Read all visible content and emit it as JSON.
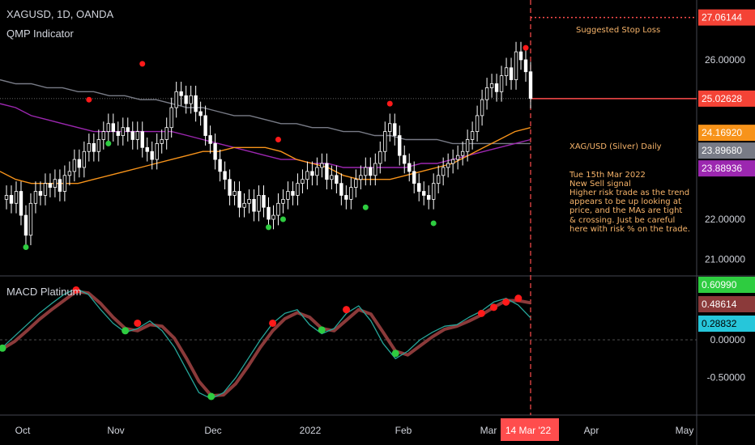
{
  "header": {
    "symbol": "XAGUSD, 1D, OANDA",
    "indicator": "QMP Indicator",
    "macd_label": "MACD Platinum"
  },
  "annotations": {
    "stop_loss": "Suggested Stop Loss",
    "note_title": "XAG/USD (Silver) Daily",
    "note_body": "Tue 15th Mar 2022\nNew Sell signal\nHigher risk trade as the trend appears to be up looking at price, and the MAs are tight & crossing. Just be careful here with risk % on the trade."
  },
  "colors": {
    "background": "#000000",
    "up_candle": "#ffffff",
    "down_candle": "#ffffff",
    "ma_fast": "#f7931a",
    "ma_mid": "#9c27b0",
    "ma_slow": "#787b86",
    "buy_signal": "#2ecc40",
    "sell_signal": "#ff1a1a",
    "macd_line": "#26a69a",
    "signal_line": "#8b3a3a",
    "stop_line": "#ff4d4d"
  },
  "chart_data": [
    {
      "type": "candlestick",
      "price_axis": {
        "ticks": [
          "26.00000",
          "22.00000",
          "21.00000"
        ],
        "tick_values": [
          26,
          22,
          21
        ],
        "range": [
          20.6,
          27.5
        ],
        "labels": [
          {
            "text": "27.06144",
            "value": 27.06144,
            "color": "#f44336"
          },
          {
            "text": "25.02628",
            "value": 25.02628,
            "color": "#f44336"
          },
          {
            "text": "24.16920",
            "value": 24.1692,
            "color": "#f7931a"
          },
          {
            "text": "23.89680",
            "value": 23.8968,
            "color": "#787b86"
          },
          {
            "text": "23.88936",
            "value": 23.88936,
            "color": "#9c27b0"
          }
        ]
      },
      "time_axis": {
        "labels": [
          "Oct",
          "Nov",
          "Dec",
          "2022",
          "Feb",
          "Mar",
          "14 Mar '22",
          "Apr",
          "May"
        ]
      },
      "closes": [
        22.6,
        22.4,
        22.7,
        22.1,
        21.6,
        22.4,
        22.7,
        22.6,
        22.9,
        22.8,
        23.0,
        22.7,
        23.1,
        23.2,
        23.5,
        23.3,
        23.7,
        23.9,
        23.7,
        24.0,
        24.2,
        24.4,
        24.2,
        24.1,
        24.3,
        24.2,
        24.0,
        24.2,
        23.8,
        23.7,
        23.5,
        23.9,
        24.0,
        24.3,
        24.8,
        25.2,
        25.1,
        24.9,
        25.1,
        24.7,
        24.6,
        24.1,
        23.9,
        23.5,
        23.2,
        23.0,
        22.6,
        22.7,
        22.3,
        22.4,
        22.5,
        22.2,
        22.6,
        22.3,
        22.0,
        22.1,
        22.4,
        22.5,
        22.7,
        22.6,
        22.9,
        23.0,
        23.2,
        23.1,
        23.3,
        23.4,
        23.0,
        23.1,
        22.9,
        22.6,
        22.5,
        22.8,
        23.0,
        23.1,
        23.3,
        23.1,
        23.4,
        23.7,
        24.2,
        24.4,
        24.1,
        23.6,
        23.4,
        23.2,
        22.9,
        22.7,
        22.6,
        22.5,
        22.9,
        23.1,
        23.3,
        23.4,
        23.5,
        23.6,
        23.7,
        24.0,
        24.2,
        24.6,
        25.0,
        25.3,
        25.4,
        25.2,
        25.6,
        25.8,
        25.5,
        26.2,
        26.0,
        25.7,
        25.03
      ],
      "opens": [
        22.5,
        22.6,
        22.4,
        22.7,
        22.1,
        21.6,
        22.4,
        22.7,
        22.6,
        22.9,
        22.8,
        23.0,
        22.7,
        23.1,
        23.2,
        23.5,
        23.3,
        23.7,
        23.9,
        23.7,
        24.0,
        24.2,
        24.4,
        24.2,
        24.1,
        24.3,
        24.2,
        24.0,
        24.2,
        23.8,
        23.7,
        23.5,
        23.9,
        24.0,
        24.3,
        24.8,
        25.2,
        25.1,
        24.9,
        25.1,
        24.7,
        24.6,
        24.1,
        23.9,
        23.5,
        23.2,
        23.0,
        22.6,
        22.7,
        22.3,
        22.4,
        22.5,
        22.2,
        22.6,
        22.3,
        22.0,
        22.1,
        22.4,
        22.5,
        22.7,
        22.6,
        22.9,
        23.0,
        23.2,
        23.1,
        23.3,
        23.4,
        23.0,
        23.1,
        22.9,
        22.6,
        22.5,
        22.8,
        23.0,
        23.1,
        23.3,
        23.1,
        23.4,
        23.7,
        24.2,
        24.4,
        24.1,
        23.6,
        23.4,
        23.2,
        22.9,
        22.7,
        22.6,
        22.5,
        22.9,
        23.1,
        23.3,
        23.4,
        23.5,
        23.6,
        23.7,
        24.0,
        24.2,
        24.6,
        25.0,
        25.3,
        25.4,
        25.2,
        25.6,
        25.8,
        25.5,
        26.2,
        26.0,
        25.7
      ],
      "ma_fast": [
        23.2,
        23.0,
        22.9,
        22.9,
        22.9,
        22.9,
        23.0,
        23.1,
        23.2,
        23.3,
        23.4,
        23.5,
        23.6,
        23.7,
        23.7,
        23.8,
        23.8,
        23.8,
        23.7,
        23.5,
        23.4,
        23.3,
        23.1,
        23.0,
        23.0,
        23.0,
        23.1,
        23.2,
        23.3,
        23.4,
        23.6,
        23.8,
        24.0,
        24.2,
        24.3
      ],
      "ma_mid": [
        24.9,
        24.8,
        24.6,
        24.5,
        24.4,
        24.3,
        24.2,
        24.2,
        24.2,
        24.2,
        24.2,
        24.2,
        24.1,
        24.0,
        23.9,
        23.8,
        23.7,
        23.6,
        23.5,
        23.5,
        23.4,
        23.4,
        23.3,
        23.3,
        23.3,
        23.3,
        23.3,
        23.4,
        23.4,
        23.5,
        23.6,
        23.7,
        23.8,
        23.9,
        24.0
      ],
      "ma_slow": [
        25.5,
        25.4,
        25.4,
        25.3,
        25.3,
        25.2,
        25.2,
        25.1,
        25.1,
        25.0,
        25.0,
        24.9,
        24.8,
        24.8,
        24.7,
        24.6,
        24.6,
        24.5,
        24.4,
        24.4,
        24.3,
        24.3,
        24.2,
        24.2,
        24.1,
        24.1,
        24.0,
        24.0,
        24.0,
        23.9,
        23.9,
        23.9,
        23.9,
        23.9,
        23.9
      ],
      "buy_signals": [
        [
          4,
          21.3
        ],
        [
          21,
          23.9
        ],
        [
          54,
          21.8
        ],
        [
          57,
          22.0
        ],
        [
          74,
          22.3
        ],
        [
          88,
          21.9
        ]
      ],
      "sell_signals": [
        [
          17,
          25.0
        ],
        [
          28,
          25.9
        ],
        [
          56,
          24.0
        ],
        [
          79,
          24.9
        ],
        [
          107,
          26.3
        ]
      ],
      "last_close": 25.02628,
      "stop_loss": 27.06144
    },
    {
      "type": "line",
      "title": "MACD Platinum",
      "value_axis": {
        "ticks": [
          "0.00000",
          "-0.50000"
        ],
        "tick_values": [
          0,
          -0.5
        ],
        "range": [
          -0.9,
          0.75
        ],
        "labels": [
          {
            "text": "0.60990",
            "value": 0.6099,
            "color": "#2ecc40"
          },
          {
            "text": "0.48614",
            "value": 0.48614,
            "color": "#8b3a3a"
          },
          {
            "text": "0.28832",
            "value": 0.28832,
            "color": "#26c6da"
          }
        ]
      },
      "series": [
        {
          "values": [
            -0.1,
            0.05,
            0.2,
            0.35,
            0.48,
            0.6,
            0.68,
            0.6,
            0.4,
            0.22,
            0.1,
            0.15,
            0.25,
            0.12,
            -0.1,
            -0.4,
            -0.7,
            -0.78,
            -0.7,
            -0.5,
            -0.25,
            0.0,
            0.22,
            0.35,
            0.4,
            0.2,
            0.08,
            0.15,
            0.35,
            0.45,
            0.25,
            -0.05,
            -0.25,
            -0.15,
            0.0,
            0.1,
            0.18,
            0.2,
            0.3,
            0.38,
            0.5,
            0.55,
            0.46,
            0.29
          ]
        },
        {
          "values": [
            -0.12,
            -0.02,
            0.12,
            0.27,
            0.4,
            0.52,
            0.64,
            0.62,
            0.48,
            0.3,
            0.15,
            0.12,
            0.2,
            0.18,
            0.02,
            -0.25,
            -0.55,
            -0.74,
            -0.73,
            -0.58,
            -0.35,
            -0.1,
            0.12,
            0.28,
            0.36,
            0.3,
            0.15,
            0.12,
            0.26,
            0.4,
            0.34,
            0.1,
            -0.15,
            -0.2,
            -0.08,
            0.04,
            0.14,
            0.18,
            0.25,
            0.33,
            0.43,
            0.52,
            0.52,
            0.49
          ]
        }
      ],
      "buy_signals": [
        [
          0,
          -0.11
        ],
        [
          10,
          0.12
        ],
        [
          17,
          -0.75
        ],
        [
          26,
          0.13
        ],
        [
          32,
          -0.18
        ]
      ],
      "sell_signals": [
        [
          6,
          0.66
        ],
        [
          11,
          0.22
        ],
        [
          22,
          0.22
        ],
        [
          28,
          0.4
        ],
        [
          39,
          0.35
        ],
        [
          40,
          0.43
        ],
        [
          41,
          0.5
        ],
        [
          42,
          0.55
        ]
      ]
    }
  ]
}
